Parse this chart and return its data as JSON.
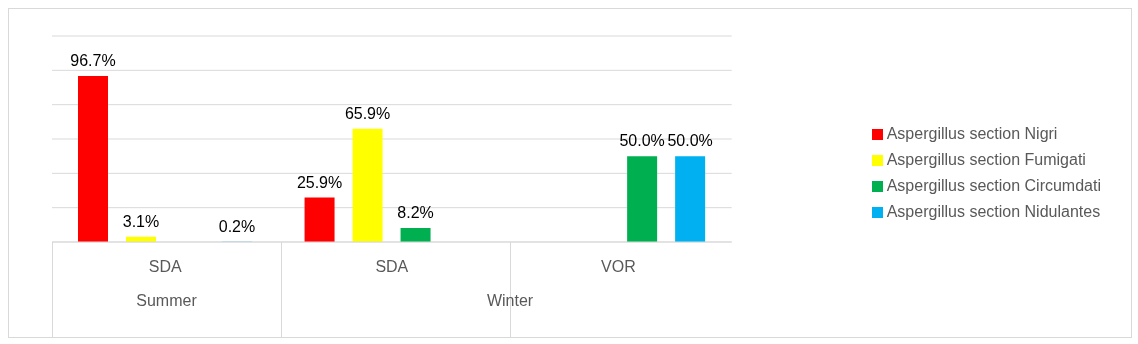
{
  "chart_data": {
    "type": "bar",
    "categories": [
      "SDA",
      "SDA",
      "VOR"
    ],
    "series": [
      {
        "name": "Aspergillus section Nigri",
        "color": "#ff0000",
        "values": [
          96.7,
          25.9,
          null
        ],
        "value_labels": [
          "96.7%",
          "25.9%",
          null
        ]
      },
      {
        "name": "Aspergillus section Fumigati",
        "color": "#ffff00",
        "values": [
          3.1,
          65.9,
          null
        ],
        "value_labels": [
          "3.1%",
          "65.9%",
          null
        ]
      },
      {
        "name": "Aspergillus section Circumdati",
        "color": "#00b050",
        "values": [
          null,
          8.2,
          50.0
        ],
        "value_labels": [
          null,
          "8.2%",
          "50.0%"
        ]
      },
      {
        "name": "Aspergillus section Nidulantes",
        "color": "#00b0f0",
        "values": [
          0.2,
          null,
          50.0
        ],
        "value_labels": [
          "0.2%",
          null,
          "50.0%"
        ]
      }
    ],
    "annotations": [
      "Summer",
      "Winter"
    ],
    "ylim": [
      0,
      120
    ],
    "yticks": [
      0,
      20,
      40,
      60,
      80,
      100,
      120
    ],
    "tick_labels": "x",
    "grid": "y",
    "legend": "right"
  }
}
